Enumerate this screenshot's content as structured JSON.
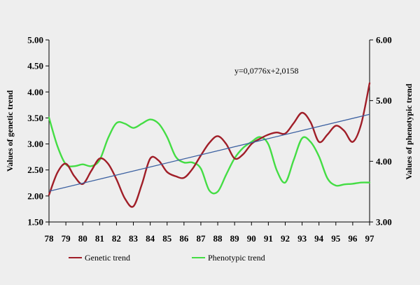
{
  "chart_data": {
    "type": "line",
    "equation": "y=0,0776x+2,0158",
    "x_categories": [
      "78",
      "79",
      "80",
      "81",
      "82",
      "83",
      "84",
      "85",
      "86",
      "87",
      "88",
      "89",
      "90",
      "91",
      "92",
      "93",
      "94",
      "95",
      "96",
      "97"
    ],
    "y_left": {
      "label": "Values of genetic trend",
      "ylim": [
        1.5,
        5.0
      ],
      "ticks": [
        "1.50",
        "2.00",
        "2.50",
        "3.00",
        "3.50",
        "4.00",
        "4.50",
        "5.00"
      ]
    },
    "y_right": {
      "label": "Values of phenotypic trend",
      "ylim": [
        3.0,
        6.0
      ],
      "ticks": [
        "3.00",
        "4.00",
        "5.00",
        "6.00"
      ]
    },
    "series": [
      {
        "name": "Genetic trend",
        "axis": "left",
        "color": "#a01e28",
        "x": [
          78,
          78.5,
          79,
          79.5,
          80,
          80.5,
          81,
          81.5,
          82,
          82.5,
          83,
          83.5,
          84,
          84.5,
          85,
          85.5,
          86,
          86.5,
          87,
          87.5,
          88,
          88.5,
          89,
          89.5,
          90,
          90.5,
          91,
          91.5,
          92,
          92.5,
          93,
          93.5,
          94,
          94.5,
          95,
          95.5,
          96,
          96.5,
          97
        ],
        "values": [
          2.02,
          2.45,
          2.62,
          2.38,
          2.23,
          2.48,
          2.72,
          2.62,
          2.32,
          1.95,
          1.8,
          2.22,
          2.72,
          2.68,
          2.46,
          2.38,
          2.35,
          2.52,
          2.78,
          3.02,
          3.15,
          3.0,
          2.72,
          2.8,
          3.0,
          3.1,
          3.18,
          3.22,
          3.2,
          3.4,
          3.6,
          3.42,
          3.04,
          3.18,
          3.35,
          3.25,
          3.04,
          3.38,
          4.17
        ]
      },
      {
        "name": "Phenotypic trend",
        "axis": "right",
        "color": "#44dd44",
        "x": [
          78,
          78.5,
          79,
          79.5,
          80,
          80.5,
          81,
          81.5,
          82,
          82.5,
          83,
          83.5,
          84,
          84.5,
          85,
          85.5,
          86,
          86.5,
          87,
          87.5,
          88,
          88.5,
          89,
          89.5,
          90,
          90.5,
          91,
          91.5,
          92,
          92.5,
          93,
          93.5,
          94,
          94.5,
          95,
          95.5,
          96,
          96.5,
          97
        ],
        "values": [
          4.72,
          4.25,
          3.95,
          3.92,
          3.95,
          3.92,
          4.02,
          4.38,
          4.63,
          4.62,
          4.55,
          4.62,
          4.69,
          4.62,
          4.4,
          4.08,
          3.98,
          3.98,
          3.88,
          3.52,
          3.5,
          3.78,
          4.05,
          4.22,
          4.32,
          4.4,
          4.28,
          3.85,
          3.65,
          4.02,
          4.38,
          4.32,
          4.08,
          3.72,
          3.6,
          3.62,
          3.63,
          3.65,
          3.65
        ]
      }
    ],
    "trend_line": {
      "axis": "left",
      "color": "#3a5fa0",
      "x": [
        78,
        97
      ],
      "values": [
        2.09,
        3.57
      ]
    },
    "legend": [
      {
        "label": "Genetic trend",
        "color": "#a01e28"
      },
      {
        "label": "Phenotypic trend",
        "color": "#44dd44"
      }
    ]
  }
}
